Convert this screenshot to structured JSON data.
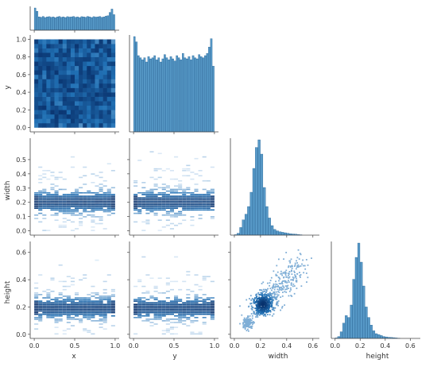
{
  "chart_data": {
    "type": "pairplot",
    "variables": [
      "x",
      "y",
      "width",
      "height"
    ],
    "colors": {
      "bar": "#1f77b4",
      "dark": "#08306b",
      "light": "#c6dbef",
      "axis": "#444444"
    },
    "axes": {
      "x": {
        "label": "x",
        "lim": [
          -0.05,
          1.05
        ],
        "ticks": [
          0.0,
          0.5,
          1.0
        ],
        "tick_labels": [
          "0.0",
          "0.5",
          "1.0"
        ]
      },
      "y": {
        "label": "y",
        "lim": [
          -0.05,
          1.05
        ],
        "ticks": [
          0.0,
          0.2,
          0.4,
          0.6,
          0.8,
          1.0
        ],
        "tick_labels": [
          "0.0",
          "0.2",
          "0.4",
          "0.6",
          "0.8",
          "1.0"
        ],
        "col_ticks": [
          0.0,
          0.5,
          1.0
        ],
        "col_tick_labels": [
          "0.0",
          "0.5",
          "1.0"
        ]
      },
      "width": {
        "label": "width",
        "lim": [
          -0.03,
          0.65
        ],
        "ticks": [
          0.0,
          0.1,
          0.2,
          0.3,
          0.4,
          0.5
        ],
        "tick_labels": [
          "0.0",
          "0.1",
          "0.2",
          "0.3",
          "0.4",
          "0.5"
        ],
        "col_ticks": [
          0.0,
          0.2,
          0.4,
          0.6
        ],
        "col_tick_labels": [
          "0.0",
          "0.2",
          "0.4",
          "0.6"
        ]
      },
      "height": {
        "label": "height",
        "lim": [
          -0.03,
          0.68
        ],
        "ticks": [
          0.0,
          0.2,
          0.4,
          0.6
        ],
        "tick_labels": [
          "0.0",
          "0.2",
          "0.4",
          "0.6"
        ]
      }
    },
    "histograms": {
      "x": {
        "bins": [
          0.0,
          0.025,
          0.05,
          0.075,
          0.1,
          0.125,
          0.15,
          0.175,
          0.2,
          0.225,
          0.25,
          0.275,
          0.3,
          0.325,
          0.35,
          0.375,
          0.4,
          0.425,
          0.45,
          0.475,
          0.5,
          0.525,
          0.55,
          0.575,
          0.6,
          0.625,
          0.65,
          0.675,
          0.7,
          0.725,
          0.75,
          0.775,
          0.8,
          0.825,
          0.85,
          0.875,
          0.9,
          0.925,
          0.95,
          0.975,
          1.0
        ],
        "counts": [
          1.0,
          0.85,
          0.6,
          0.58,
          0.62,
          0.57,
          0.6,
          0.61,
          0.58,
          0.6,
          0.56,
          0.6,
          0.62,
          0.58,
          0.6,
          0.57,
          0.61,
          0.59,
          0.6,
          0.62,
          0.58,
          0.6,
          0.57,
          0.61,
          0.6,
          0.58,
          0.62,
          0.6,
          0.57,
          0.61,
          0.59,
          0.6,
          0.62,
          0.58,
          0.6,
          0.63,
          0.65,
          0.8,
          0.95,
          0.7
        ]
      },
      "y": {
        "bins": [
          0.0,
          0.025,
          0.05,
          0.075,
          0.1,
          0.125,
          0.15,
          0.175,
          0.2,
          0.225,
          0.25,
          0.275,
          0.3,
          0.325,
          0.35,
          0.375,
          0.4,
          0.425,
          0.45,
          0.475,
          0.5,
          0.525,
          0.55,
          0.575,
          0.6,
          0.625,
          0.65,
          0.675,
          0.7,
          0.725,
          0.75,
          0.775,
          0.8,
          0.825,
          0.85,
          0.875,
          0.9,
          0.925,
          0.95,
          0.975,
          1.0
        ],
        "counts": [
          0.9,
          0.85,
          0.72,
          0.7,
          0.68,
          0.7,
          0.66,
          0.71,
          0.69,
          0.7,
          0.72,
          0.68,
          0.7,
          0.66,
          0.69,
          0.73,
          0.7,
          0.68,
          0.71,
          0.69,
          0.67,
          0.72,
          0.7,
          0.68,
          0.74,
          0.7,
          0.69,
          0.71,
          0.68,
          0.72,
          0.7,
          0.69,
          0.73,
          0.71,
          0.7,
          0.72,
          0.74,
          0.8,
          0.88,
          0.62
        ]
      },
      "width": {
        "bins": [
          0.0,
          0.02,
          0.04,
          0.06,
          0.08,
          0.1,
          0.12,
          0.14,
          0.16,
          0.18,
          0.2,
          0.22,
          0.24,
          0.26,
          0.28,
          0.3,
          0.32,
          0.34,
          0.36,
          0.38,
          0.4,
          0.42,
          0.44,
          0.46,
          0.48,
          0.5,
          0.52
        ],
        "counts": [
          0.005,
          0.02,
          0.08,
          0.16,
          0.22,
          0.3,
          0.45,
          0.7,
          0.92,
          1.0,
          0.85,
          0.5,
          0.3,
          0.18,
          0.1,
          0.06,
          0.045,
          0.035,
          0.03,
          0.025,
          0.02,
          0.015,
          0.012,
          0.01,
          0.006,
          0.004
        ]
      },
      "height": {
        "bins": [
          0.0,
          0.02,
          0.04,
          0.06,
          0.08,
          0.1,
          0.12,
          0.14,
          0.16,
          0.18,
          0.2,
          0.22,
          0.24,
          0.26,
          0.28,
          0.3,
          0.32,
          0.34,
          0.36,
          0.38,
          0.4,
          0.42,
          0.44,
          0.46,
          0.48,
          0.5,
          0.52
        ],
        "counts": [
          0.005,
          0.02,
          0.07,
          0.16,
          0.24,
          0.22,
          0.35,
          0.62,
          0.85,
          1.0,
          0.8,
          0.55,
          0.33,
          0.22,
          0.14,
          0.08,
          0.05,
          0.04,
          0.03,
          0.02,
          0.016,
          0.012,
          0.01,
          0.008,
          0.005,
          0.003
        ]
      }
    },
    "joint": {
      "y_vs_x": {
        "x_bins": [
          0.0,
          0.05,
          0.1,
          0.15,
          0.2,
          0.25,
          0.3,
          0.35,
          0.4,
          0.45,
          0.5,
          0.55,
          0.6,
          0.65,
          0.7,
          0.75,
          0.8,
          0.85,
          0.9,
          0.95,
          1.0
        ],
        "y_bins": [
          0.0,
          0.05,
          0.1,
          0.15,
          0.2,
          0.25,
          0.3,
          0.35,
          0.4,
          0.45,
          0.5,
          0.55,
          0.6,
          0.65,
          0.7,
          0.75,
          0.8,
          0.85,
          0.9,
          0.95,
          1.0
        ],
        "density": "approximately uniform on [0,1]x[0,1], slightly denser along edges"
      },
      "width_vs_xy": {
        "description": "width concentrated near 0.2 for all x and y; dense band 0.1-0.25, sparse up to 0.55"
      },
      "height_vs_xy": {
        "description": "height concentrated near 0.2 for all x and y; dense band 0.1-0.25, sparse up to 0.6"
      },
      "height_vs_width": {
        "clusters": [
          {
            "width": 0.22,
            "height": 0.22,
            "weight": 1.0
          },
          {
            "width": 0.1,
            "height": 0.08,
            "weight": 0.5
          },
          {
            "width": 0.32,
            "height": 0.3,
            "weight": 0.35
          }
        ],
        "trend": "positive correlation, sparse points up to width 0.5 / height 0.55"
      }
    },
    "grid": false,
    "legend": "none"
  }
}
